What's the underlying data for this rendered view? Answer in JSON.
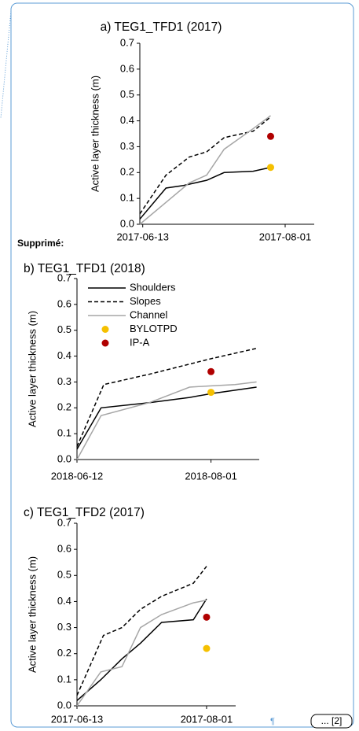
{
  "chart_data": [
    {
      "type": "line",
      "title": "a) TEG1_TFD1 (2017)",
      "ylabel": "Active layer thickness (m)",
      "xlim": [
        "2017-06-12",
        "2017-08-11"
      ],
      "xticks": [
        "2017-06-13",
        "2017-08-01"
      ],
      "ylim": [
        0,
        0.7
      ],
      "yticks": [
        {
          "value": 0,
          "label": "0.0"
        },
        0.1,
        0.2,
        0.3,
        0.4,
        0.5,
        0.6,
        0.7
      ],
      "series": [
        {
          "name": "Shoulders",
          "color": "#000000",
          "dash": false,
          "x": [
            "2017-06-12",
            "2017-06-21",
            "2017-06-27",
            "2017-07-05",
            "2017-07-11",
            "2017-07-21",
            "2017-07-27"
          ],
          "values": [
            0.02,
            0.14,
            0.15,
            0.17,
            0.2,
            0.205,
            0.22
          ]
        },
        {
          "name": "Slopes",
          "color": "#000000",
          "dash": true,
          "x": [
            "2017-06-12",
            "2017-06-21",
            "2017-06-29",
            "2017-07-05",
            "2017-07-11",
            "2017-07-21",
            "2017-07-27"
          ],
          "values": [
            0.04,
            0.19,
            0.26,
            0.28,
            0.335,
            0.36,
            0.415
          ]
        },
        {
          "name": "Channel",
          "color": "#a6a6a6",
          "dash": false,
          "x": [
            "2017-06-12",
            "2017-06-29",
            "2017-07-05",
            "2017-07-11",
            "2017-07-21",
            "2017-07-27"
          ],
          "values": [
            0.0,
            0.16,
            0.19,
            0.29,
            0.37,
            0.42
          ]
        },
        {
          "name": "BYLOTPD",
          "color": "#f5c000",
          "marker": "circle",
          "x": [
            "2017-07-27"
          ],
          "values": [
            0.22
          ]
        },
        {
          "name": "IP-A",
          "color": "#b00000",
          "marker": "circle",
          "x": [
            "2017-07-27"
          ],
          "values": [
            0.34
          ]
        }
      ]
    },
    {
      "type": "line",
      "title": "b) TEG1_TFD1 (2018)",
      "ylabel": "Active layer thickness (m)",
      "legend": "upper left",
      "xlim": [
        "2018-06-12",
        "2018-08-19"
      ],
      "xticks": [
        "2018-06-12",
        "2018-08-01"
      ],
      "ylim": [
        0,
        0.7
      ],
      "yticks": [
        {
          "value": 0,
          "label": "0.0"
        },
        0.1,
        0.2,
        0.3,
        0.4,
        0.5,
        0.6,
        0.7
      ],
      "series": [
        {
          "name": "Shoulders",
          "color": "#000000",
          "dash": false,
          "x": [
            "2018-06-12",
            "2018-06-21",
            "2018-07-09",
            "2018-07-24",
            "2018-08-01",
            "2018-08-18"
          ],
          "values": [
            0.04,
            0.2,
            0.22,
            0.24,
            0.255,
            0.28
          ]
        },
        {
          "name": "Slopes",
          "color": "#000000",
          "dash": true,
          "x": [
            "2018-06-12",
            "2018-06-22",
            "2018-07-09",
            "2018-08-01",
            "2018-08-18"
          ],
          "values": [
            0.05,
            0.29,
            0.33,
            0.39,
            0.43
          ]
        },
        {
          "name": "Channel",
          "color": "#a6a6a6",
          "dash": false,
          "x": [
            "2018-06-12",
            "2018-06-21",
            "2018-07-09",
            "2018-07-24",
            "2018-08-01",
            "2018-08-10",
            "2018-08-18"
          ],
          "values": [
            0.0,
            0.17,
            0.22,
            0.28,
            0.285,
            0.29,
            0.3
          ]
        },
        {
          "name": "BYLOTPD",
          "color": "#f5c000",
          "marker": "circle",
          "x": [
            "2018-08-01"
          ],
          "values": [
            0.26
          ]
        },
        {
          "name": "IP-A",
          "color": "#b00000",
          "marker": "circle",
          "x": [
            "2018-08-01"
          ],
          "values": [
            0.34
          ]
        }
      ]
    },
    {
      "type": "line",
      "title": "c) TEG1_TFD2 (2017)",
      "ylabel": "Active layer thickness (m)",
      "xlim": [
        "2017-06-13",
        "2017-08-12"
      ],
      "xticks": [
        "2017-06-13",
        "2017-08-01"
      ],
      "ylim": [
        0,
        0.7
      ],
      "yticks": [
        {
          "value": 0,
          "label": "0.0"
        },
        0.1,
        0.2,
        0.3,
        0.4,
        0.5,
        0.6,
        0.7
      ],
      "series": [
        {
          "name": "Shoulders",
          "color": "#000000",
          "dash": false,
          "x": [
            "2017-06-13",
            "2017-06-22",
            "2017-06-30",
            "2017-07-07",
            "2017-07-15",
            "2017-07-27",
            "2017-08-01"
          ],
          "values": [
            0.02,
            0.1,
            0.18,
            0.24,
            0.32,
            0.33,
            0.41
          ]
        },
        {
          "name": "Slopes",
          "color": "#000000",
          "dash": true,
          "x": [
            "2017-06-13",
            "2017-06-23",
            "2017-06-30",
            "2017-07-07",
            "2017-07-15",
            "2017-07-27",
            "2017-08-01"
          ],
          "values": [
            0.04,
            0.27,
            0.3,
            0.37,
            0.42,
            0.47,
            0.535
          ]
        },
        {
          "name": "Channel",
          "color": "#a6a6a6",
          "dash": false,
          "x": [
            "2017-06-13",
            "2017-06-22",
            "2017-06-30",
            "2017-07-07",
            "2017-07-15",
            "2017-07-27",
            "2017-08-01"
          ],
          "values": [
            0.0,
            0.13,
            0.15,
            0.3,
            0.35,
            0.395,
            0.405
          ]
        },
        {
          "name": "BYLOTPD",
          "color": "#f5c000",
          "marker": "circle",
          "x": [
            "2017-08-01"
          ],
          "values": [
            0.22
          ]
        },
        {
          "name": "IP-A",
          "color": "#b00000",
          "marker": "circle",
          "x": [
            "2017-08-01"
          ],
          "values": [
            0.34
          ]
        }
      ]
    }
  ],
  "balloon": {
    "label": "Supprimé:",
    "pilcrow": "¶",
    "more": "... [2]"
  }
}
